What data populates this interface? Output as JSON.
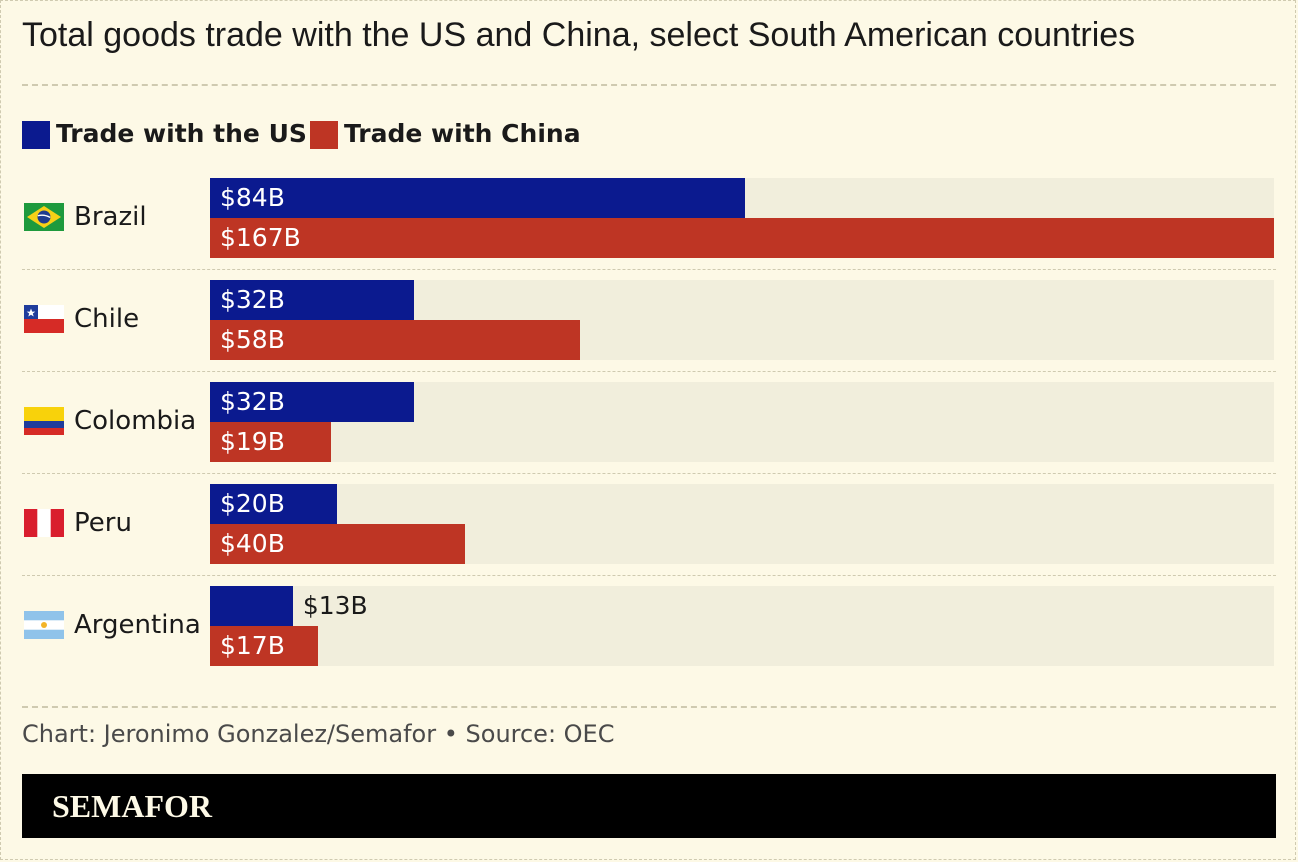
{
  "title": "Total goods trade with the US and China, select South American countries",
  "legend": [
    {
      "label": "Trade with the US",
      "color": "#0b1a8f"
    },
    {
      "label": "Trade with China",
      "color": "#be3524"
    }
  ],
  "chart_data": {
    "type": "bar",
    "orientation": "horizontal",
    "categories": [
      "Brazil",
      "Chile",
      "Colombia",
      "Peru",
      "Argentina"
    ],
    "series": [
      {
        "name": "Trade with the US",
        "values": [
          84,
          32,
          32,
          20,
          13
        ],
        "labels": [
          "$84B",
          "$32B",
          "$32B",
          "$20B",
          "$13B"
        ],
        "color": "#0b1a8f"
      },
      {
        "name": "Trade with China",
        "values": [
          167,
          58,
          19,
          40,
          17
        ],
        "labels": [
          "$167B",
          "$58B",
          "$19B",
          "$40B",
          "$17B"
        ],
        "color": "#be3524"
      }
    ],
    "xlim": [
      0,
      167
    ],
    "grid": false,
    "legend_position": "top-left"
  },
  "flags": [
    "brazil-flag-icon",
    "chile-flag-icon",
    "colombia-flag-icon",
    "peru-flag-icon",
    "argentina-flag-icon"
  ],
  "source": "Chart: Jeronimo Gonzalez/Semafor • Source: OEC",
  "brand": "SEMAFOR"
}
